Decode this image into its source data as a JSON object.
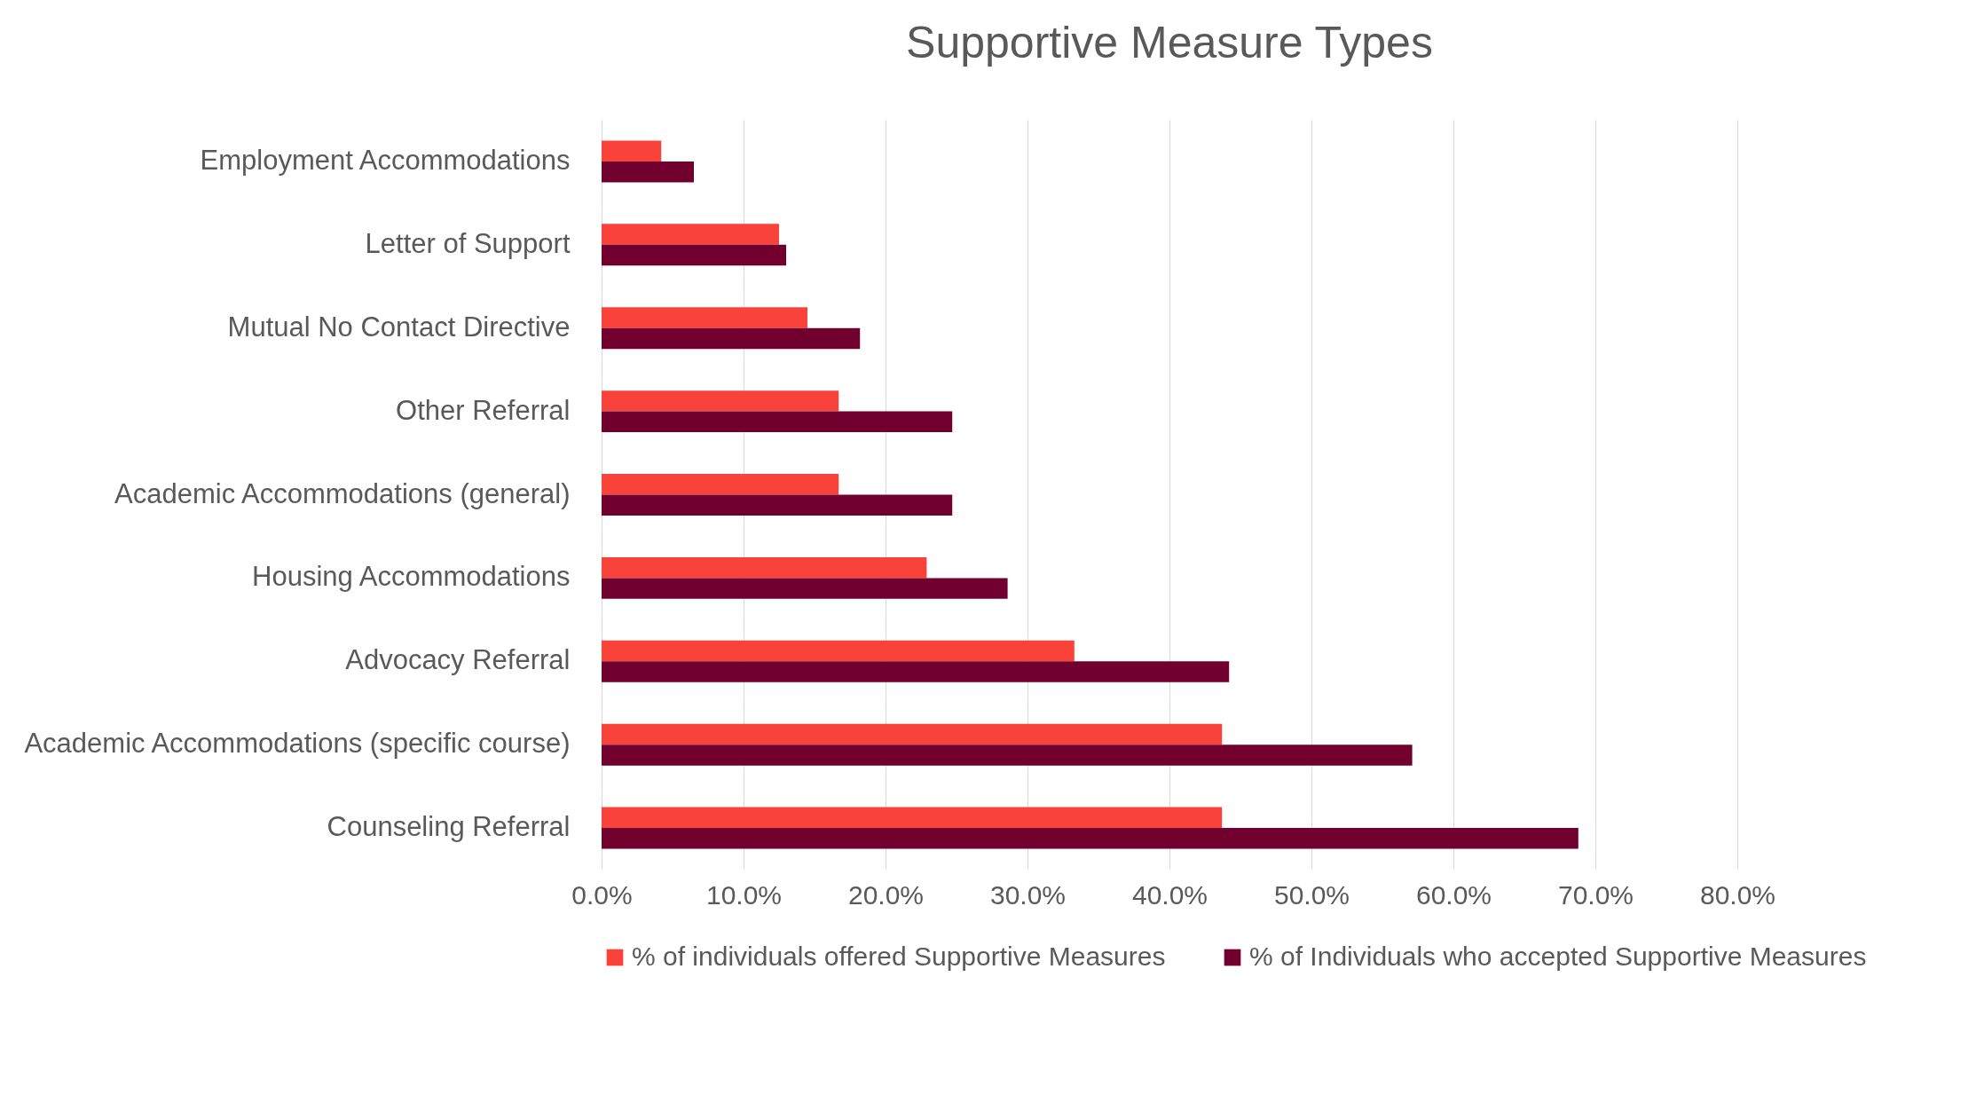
{
  "chart_data": {
    "type": "bar",
    "orientation": "horizontal",
    "title": "Supportive Measure Types",
    "categories": [
      "Employment Accommodations",
      "Letter of Support",
      "Mutual No Contact Directive",
      "Other Referral",
      "Academic Accommodations (general)",
      "Housing Accommodations",
      "Advocacy Referral",
      "Academic Accommodations (specific course)",
      "Counseling Referral"
    ],
    "series": [
      {
        "name": "% of individuals offered Supportive Measures",
        "color": "#f9423a",
        "values": [
          4.2,
          12.5,
          14.5,
          16.7,
          16.7,
          22.9,
          33.3,
          43.7,
          43.7
        ]
      },
      {
        "name": "% of Individuals who accepted Supportive Measures",
        "color": "#71002f",
        "values": [
          6.5,
          13.0,
          18.2,
          24.7,
          24.7,
          28.6,
          44.2,
          57.1,
          68.8
        ]
      }
    ],
    "xlim": [
      0,
      80
    ],
    "xticks": [
      {
        "value": 0,
        "label": "0.0%"
      },
      {
        "value": 10,
        "label": "10.0%"
      },
      {
        "value": 20,
        "label": "20.0%"
      },
      {
        "value": 30,
        "label": "30.0%"
      },
      {
        "value": 40,
        "label": "40.0%"
      },
      {
        "value": 50,
        "label": "50.0%"
      },
      {
        "value": 60,
        "label": "60.0%"
      },
      {
        "value": 70,
        "label": "70.0%"
      },
      {
        "value": 80,
        "label": "80.0%"
      }
    ],
    "grid": "x",
    "legend": "bottom"
  }
}
